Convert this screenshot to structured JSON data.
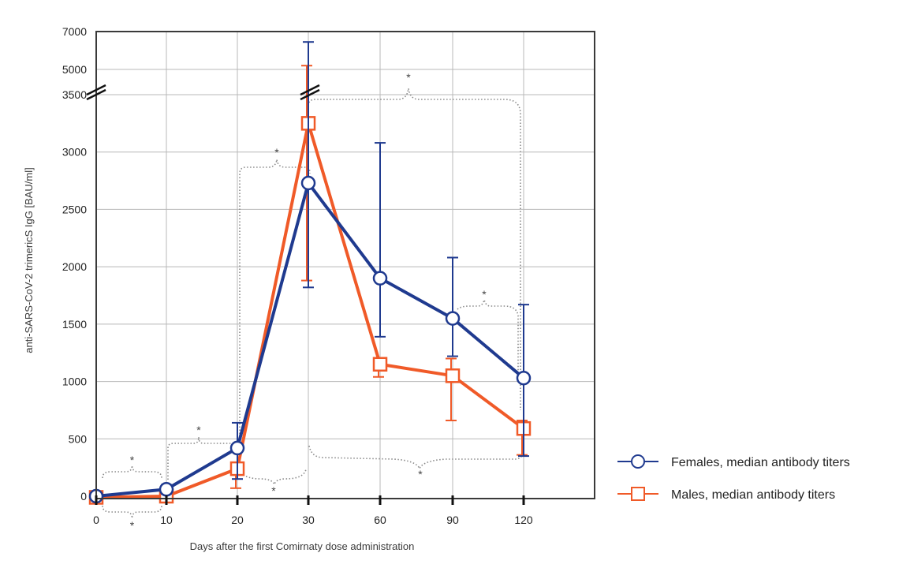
{
  "chart_data": {
    "type": "line",
    "xlabel": "Days after the first Comirnaty dose administration",
    "ylabel": "anti-SARS-CoV-2 trimericS IgG [BAU/ml]",
    "x_categories": [
      "0",
      "10",
      "20",
      "30",
      "60",
      "90",
      "120"
    ],
    "y_ticks": [
      "0",
      "500",
      "1000",
      "1500",
      "2000",
      "2500",
      "3000",
      "3500"
    ],
    "y_ticks_upper": [
      "5000",
      "7000"
    ],
    "y_axis_break_between": [
      3500,
      5000
    ],
    "ylim": [
      0,
      7000
    ],
    "grid": true,
    "legend_position": "right",
    "series": [
      {
        "name": "Females, median antibody titers",
        "marker": "circle",
        "color": "#1f3a8f",
        "values": [
          0,
          60,
          420,
          2730,
          1900,
          1550,
          1030
        ],
        "error_low": [
          0,
          20,
          150,
          1820,
          1390,
          1220,
          350
        ],
        "error_high": [
          0,
          100,
          640,
          6450,
          3080,
          2080,
          1670
        ]
      },
      {
        "name": "Males, median antibody titers",
        "marker": "square",
        "color": "#f05a28",
        "values": [
          -10,
          0,
          240,
          3250,
          1150,
          1050,
          590
        ],
        "error_low": [
          -10,
          0,
          70,
          1880,
          1040,
          660,
          360
        ],
        "error_high": [
          -10,
          0,
          290,
          5200,
          1200,
          1200,
          660
        ]
      }
    ],
    "significance_annotations": [
      {
        "label": "*",
        "between": [
          "0",
          "10"
        ],
        "position": "above"
      },
      {
        "label": "*",
        "between": [
          "0",
          "10"
        ],
        "position": "below"
      },
      {
        "label": "*",
        "between": [
          "10",
          "20"
        ],
        "position": "above"
      },
      {
        "label": "*",
        "between": [
          "20",
          "30"
        ],
        "position": "above"
      },
      {
        "label": "*",
        "between": [
          "20",
          "30"
        ],
        "position": "below"
      },
      {
        "label": "*",
        "between": [
          "30",
          "120"
        ],
        "position": "above"
      },
      {
        "label": "*",
        "between": [
          "30",
          "120"
        ],
        "position": "below"
      },
      {
        "label": "*",
        "between": [
          "90",
          "120"
        ],
        "position": "above"
      }
    ]
  },
  "colors": {
    "female": "#1f3a8f",
    "male": "#f05a28",
    "grid": "#b8b8b8",
    "axis": "#3a3a3a",
    "brace": "#8a8a8a"
  }
}
